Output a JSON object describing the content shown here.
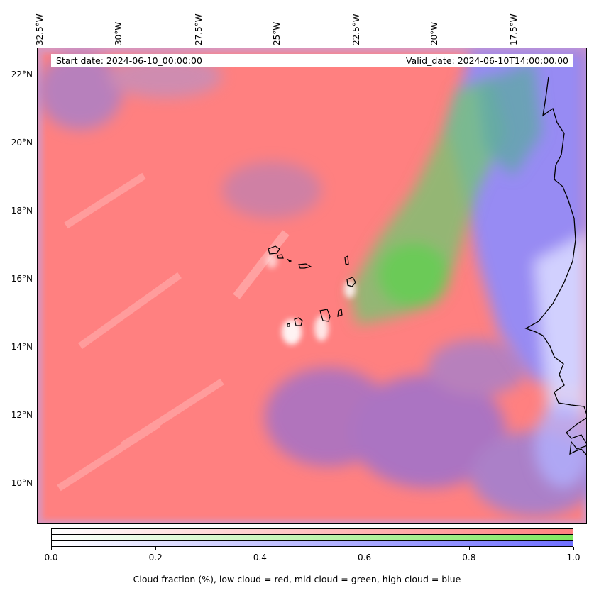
{
  "map": {
    "start_date": "Start date: 2024-06-10_00:00:00",
    "valid_date": "Valid_date: 2024-06-10T14:00:00.00",
    "lon_labels": [
      "32.5°W",
      "30°W",
      "27.5°W",
      "25°W",
      "22.5°W",
      "20°W",
      "17.5°W"
    ],
    "lat_labels": [
      "22°N",
      "20°N",
      "18°N",
      "16°N",
      "14°N",
      "12°N",
      "10°N"
    ],
    "colors": {
      "low_cloud": "#ff7f7f",
      "mid_cloud": "#7fdf5f",
      "high_cloud": "#7f7fff"
    }
  },
  "colorbar": {
    "ticks": [
      "0.0",
      "0.2",
      "0.4",
      "0.6",
      "0.8",
      "1.0"
    ],
    "label": "Cloud fraction (%), low cloud = red, mid cloud = green, high cloud = blue"
  }
}
